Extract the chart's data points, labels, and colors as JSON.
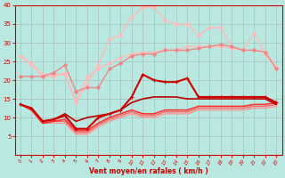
{
  "background_color": "#b8e8e0",
  "grid_color": "#999999",
  "xlabel": "Vent moyen/en rafales ( km/h )",
  "xlabel_color": "#cc0000",
  "tick_color": "#cc0000",
  "xlim": [
    -0.5,
    23.5
  ],
  "ylim": [
    0,
    40
  ],
  "yticks": [
    5,
    10,
    15,
    20,
    25,
    30,
    35,
    40
  ],
  "xticks": [
    0,
    1,
    2,
    3,
    4,
    5,
    6,
    7,
    8,
    9,
    10,
    11,
    12,
    13,
    14,
    15,
    16,
    17,
    18,
    19,
    20,
    21,
    22,
    23
  ],
  "lines": [
    {
      "y": [
        26.5,
        24.5,
        21.5,
        21.5,
        21.5,
        14.5,
        21,
        23,
        24.5,
        26,
        27,
        27.5,
        27.5,
        28,
        28,
        29,
        29,
        29,
        29,
        28.5,
        28,
        28,
        27.5,
        23.5
      ],
      "color": "#ffbbbb",
      "lw": 1.0,
      "marker": "D",
      "ms": 2.0,
      "zorder": 2
    },
    {
      "y": [
        26.5,
        24,
        21,
        21,
        22,
        14,
        19,
        24,
        31,
        32,
        37,
        39.5,
        39.5,
        36,
        35,
        35,
        32,
        34,
        34,
        29,
        28,
        32.5,
        27,
        23
      ],
      "color": "#ffbbbb",
      "lw": 1.0,
      "marker": "D",
      "ms": 2.0,
      "zorder": 2
    },
    {
      "y": [
        21,
        21,
        21,
        22,
        24,
        17,
        18,
        18,
        23,
        24.5,
        26.5,
        27,
        27,
        28,
        28,
        28,
        28.5,
        29,
        29.5,
        29,
        28,
        28,
        27.5,
        23
      ],
      "color": "#ee8888",
      "lw": 1.0,
      "marker": "D",
      "ms": 2.0,
      "zorder": 3
    },
    {
      "y": [
        13.5,
        12.5,
        9,
        9.5,
        10.5,
        7,
        7,
        10,
        11,
        12,
        15.5,
        21.5,
        20,
        19.5,
        19.5,
        20.5,
        15.5,
        15.5,
        15.5,
        15.5,
        15.5,
        15.5,
        15.5,
        14
      ],
      "color": "#cc0000",
      "lw": 1.5,
      "marker": "+",
      "ms": 3.5,
      "zorder": 6
    },
    {
      "y": [
        13.5,
        12.5,
        9,
        9.5,
        11,
        9,
        10,
        10.5,
        11,
        12,
        14,
        15,
        15.5,
        15.5,
        15.5,
        15,
        15,
        15,
        15,
        15,
        15,
        15,
        15,
        13.5
      ],
      "color": "#bb0000",
      "lw": 1.2,
      "marker": null,
      "ms": 0,
      "zorder": 5
    },
    {
      "y": [
        13.5,
        12,
        8.5,
        9,
        9.5,
        6.5,
        6.5,
        8.5,
        10,
        11,
        12,
        11,
        11,
        12,
        12,
        12,
        13,
        13,
        13,
        13,
        13,
        13.5,
        13.5,
        14
      ],
      "color": "#ff3333",
      "lw": 1.2,
      "marker": null,
      "ms": 0,
      "zorder": 4
    },
    {
      "y": [
        13.5,
        12,
        8.5,
        9,
        9,
        6,
        6,
        8,
        9.5,
        10.5,
        11.5,
        10.5,
        10.5,
        11.5,
        11.5,
        11.5,
        12.5,
        12.5,
        12.5,
        12.5,
        12.5,
        13,
        13,
        13.5
      ],
      "color": "#ff6666",
      "lw": 1.0,
      "marker": null,
      "ms": 0,
      "zorder": 3
    },
    {
      "y": [
        13.5,
        12,
        8.5,
        8.5,
        8.5,
        5.5,
        5.5,
        7.5,
        9,
        10,
        11,
        10,
        10,
        11,
        11,
        11,
        12,
        12,
        12,
        12,
        12,
        12.5,
        12.5,
        13
      ],
      "color": "#ff9999",
      "lw": 1.0,
      "marker": null,
      "ms": 0,
      "zorder": 2
    }
  ]
}
